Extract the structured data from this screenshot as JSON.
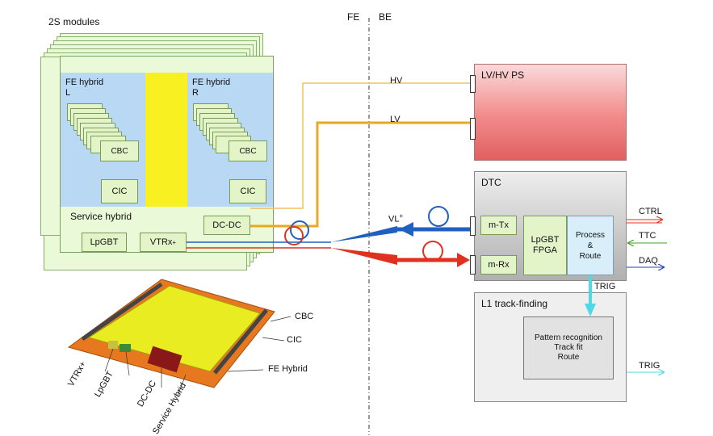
{
  "section_divider": {
    "left": "FE",
    "right": "BE"
  },
  "modules": {
    "title": "2S modules",
    "fe_hybrid_left": "FE hybrid\nL",
    "fe_hybrid_right": "FE hybrid\nR",
    "cbc": "CBC",
    "cic": "CIC",
    "service_hybrid": "Service hybrid",
    "dcdc": "DC-DC",
    "lpgbt": "LpGBT",
    "vtrx": "VTRx",
    "vtrx_sup": "+"
  },
  "links": {
    "hv": "HV",
    "lv": "LV",
    "vl": "VL",
    "vl_sup": "+"
  },
  "lvhv_ps": {
    "title": "LV/HV PS"
  },
  "dtc": {
    "title": "DTC",
    "mtx": "m-Tx",
    "mrx": "m-Rx",
    "lpgbt_fpga": "LpGBT\nFPGA",
    "process": "Process\n&\nRoute",
    "ctrl": "CTRL",
    "ttc": "TTC",
    "daq": "DAQ",
    "trig": "TRIG"
  },
  "l1": {
    "title": "L1 track-finding",
    "inner": "Pattern recognition\nTrack fit\nRoute",
    "trig_out": "TRIG"
  },
  "module_photo_labels": {
    "cbc": "CBC",
    "cic": "CIC",
    "fe_hybrid": "FE Hybrid",
    "vtrx": "VTRx+",
    "lpgbt": "LpGBT",
    "dcdc": "DC-DC",
    "service_hybrid": "Service Hybrid"
  },
  "colors": {
    "hv_line": "#f0c060",
    "lv_line": "#e8a820",
    "down_link": "#2060c0",
    "up_link": "#e03020",
    "ctrl_arrow": "#e03020",
    "ttc_arrow": "#40a020",
    "daq_arrow": "#2040c0",
    "trig_arrow": "#50d8e8",
    "lvhv_fill": "#f08080",
    "dtc_fill": "#c8c8c8",
    "sensor_yellow": "#f8f020"
  }
}
